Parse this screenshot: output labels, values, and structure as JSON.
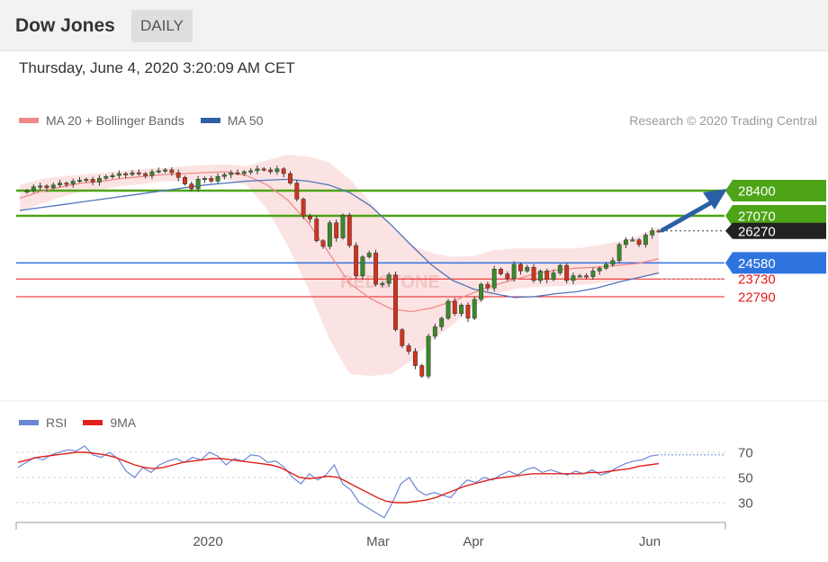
{
  "header": {
    "title": "Dow Jones",
    "period": "DAILY"
  },
  "timestamp": "Thursday, June 4, 2020 3:20:09 AM CET",
  "legend": {
    "ma20_label": "MA 20 + Bollinger Bands",
    "ma50_label": "MA 50",
    "ma20_color": "#f08a8a",
    "ma50_color": "#2f5fa8",
    "credit": "Research © 2020 Trading Central"
  },
  "watermark": "REDSTONE",
  "rsi_legend": {
    "rsi_label": "RSI",
    "ma9_label": "9MA",
    "rsi_color": "#6b86d6",
    "ma9_color": "#e0201a"
  },
  "chart_data": {
    "type": "candlestick",
    "x_labels": [
      "2020",
      "Mar",
      "Apr",
      "Jun"
    ],
    "levels": [
      {
        "value": 28400,
        "label": "28400",
        "kind": "resistance",
        "color": "#4ca416"
      },
      {
        "value": 27070,
        "label": "27070",
        "kind": "resistance",
        "color": "#4ca416"
      },
      {
        "value": 26270,
        "label": "26270",
        "kind": "last",
        "color": "#222222"
      },
      {
        "value": 24580,
        "label": "24580",
        "kind": "pivot",
        "color": "#2f73e0"
      },
      {
        "value": 23730,
        "label": "23730",
        "kind": "support",
        "color": "#e81818"
      },
      {
        "value": 22790,
        "label": "22790",
        "kind": "support",
        "color": "#e81818"
      }
    ],
    "close": [
      28400,
      28600,
      28650,
      28550,
      28700,
      28800,
      28750,
      28900,
      28950,
      29000,
      28850,
      29050,
      29150,
      29200,
      29300,
      29250,
      29350,
      29300,
      29200,
      29400,
      29450,
      29500,
      29350,
      29100,
      28750,
      28500,
      29000,
      29050,
      28900,
      29150,
      29250,
      29350,
      29300,
      29400,
      29450,
      29550,
      29500,
      29400,
      29550,
      29300,
      28800,
      27950,
      27050,
      26900,
      25750,
      25450,
      26700,
      25900,
      27100,
      25500,
      23900,
      24900,
      25100,
      23450,
      23500,
      23950,
      21050,
      20200,
      19900,
      19150,
      18590,
      20700,
      21200,
      21650,
      22550,
      21900,
      22350,
      21650,
      22650,
      23450,
      23250,
      24250,
      24000,
      23750,
      24500,
      24150,
      24350,
      23650,
      24150,
      23700,
      24050,
      24450,
      23650,
      23900,
      23900,
      23850,
      24150,
      24300,
      24500,
      24700,
      25550,
      25800,
      25800,
      25550,
      26050,
      26280,
      26270
    ],
    "ma50": [
      27350,
      27500,
      27650,
      27800,
      27950,
      28100,
      28250,
      28400,
      28550,
      28700,
      28800,
      28900,
      28950,
      29000,
      28900,
      28700,
      28300,
      27600,
      26600,
      25500,
      24450,
      23650,
      23200,
      22950,
      22750,
      22800,
      22950,
      23050,
      23250,
      23550,
      23800,
      24050
    ],
    "ma20": [
      28000,
      28350,
      28600,
      28800,
      28900,
      29050,
      29150,
      29250,
      29300,
      29350,
      29400,
      29200,
      28700,
      27900,
      26700,
      25100,
      23500,
      22700,
      22150,
      22000,
      22200,
      22550,
      23000,
      23400,
      23700,
      24000,
      24200,
      24300,
      24350,
      24450,
      24550,
      24800
    ],
    "bb_upper": [
      28700,
      29000,
      29150,
      29250,
      29350,
      29450,
      29550,
      29600,
      29700,
      29750,
      29800,
      29700,
      30000,
      30300,
      30200,
      29900,
      29000,
      27800,
      26500,
      25500,
      25100,
      24900,
      24950,
      25250,
      25350,
      25350,
      25350,
      25350,
      25500,
      25700,
      26000,
      26500
    ],
    "bb_lower": [
      27300,
      27700,
      28050,
      28350,
      28450,
      28650,
      28750,
      28900,
      28900,
      28950,
      29000,
      28700,
      27400,
      25500,
      23200,
      20600,
      18700,
      18600,
      18700,
      19400,
      20500,
      21300,
      22300,
      22900,
      23200,
      23300,
      23350,
      23400,
      23500,
      23600,
      23800,
      23950
    ],
    "rsi": {
      "ticks": [
        70,
        50,
        30
      ],
      "rsi_values": [
        58,
        62,
        66,
        64,
        68,
        70,
        72,
        71,
        75,
        68,
        66,
        70,
        65,
        55,
        50,
        58,
        54,
        60,
        63,
        65,
        62,
        66,
        64,
        70,
        67,
        60,
        65,
        63,
        68,
        67,
        62,
        63,
        58,
        50,
        45,
        53,
        48,
        52,
        60,
        45,
        40,
        30,
        26,
        22,
        18,
        30,
        45,
        50,
        40,
        36,
        38,
        36,
        34,
        42,
        48,
        46,
        50,
        48,
        52,
        55,
        52,
        56,
        58,
        54,
        56,
        54,
        52,
        55,
        53,
        56,
        52,
        54,
        58,
        61,
        63,
        64,
        67,
        68
      ],
      "ma9_values": [
        62,
        64,
        66,
        67,
        68,
        69,
        70,
        70,
        69,
        68,
        66,
        63,
        60,
        58,
        57,
        58,
        60,
        62,
        63,
        64,
        65,
        65,
        64,
        63,
        62,
        61,
        60,
        58,
        54,
        50,
        49,
        50,
        51,
        50,
        46,
        42,
        38,
        34,
        31,
        30,
        30,
        31,
        32,
        34,
        37,
        40,
        43,
        45,
        47,
        49,
        50,
        51,
        52,
        53,
        53,
        53,
        53,
        53,
        53,
        54,
        54,
        55,
        56,
        57,
        59,
        60,
        61
      ]
    }
  }
}
